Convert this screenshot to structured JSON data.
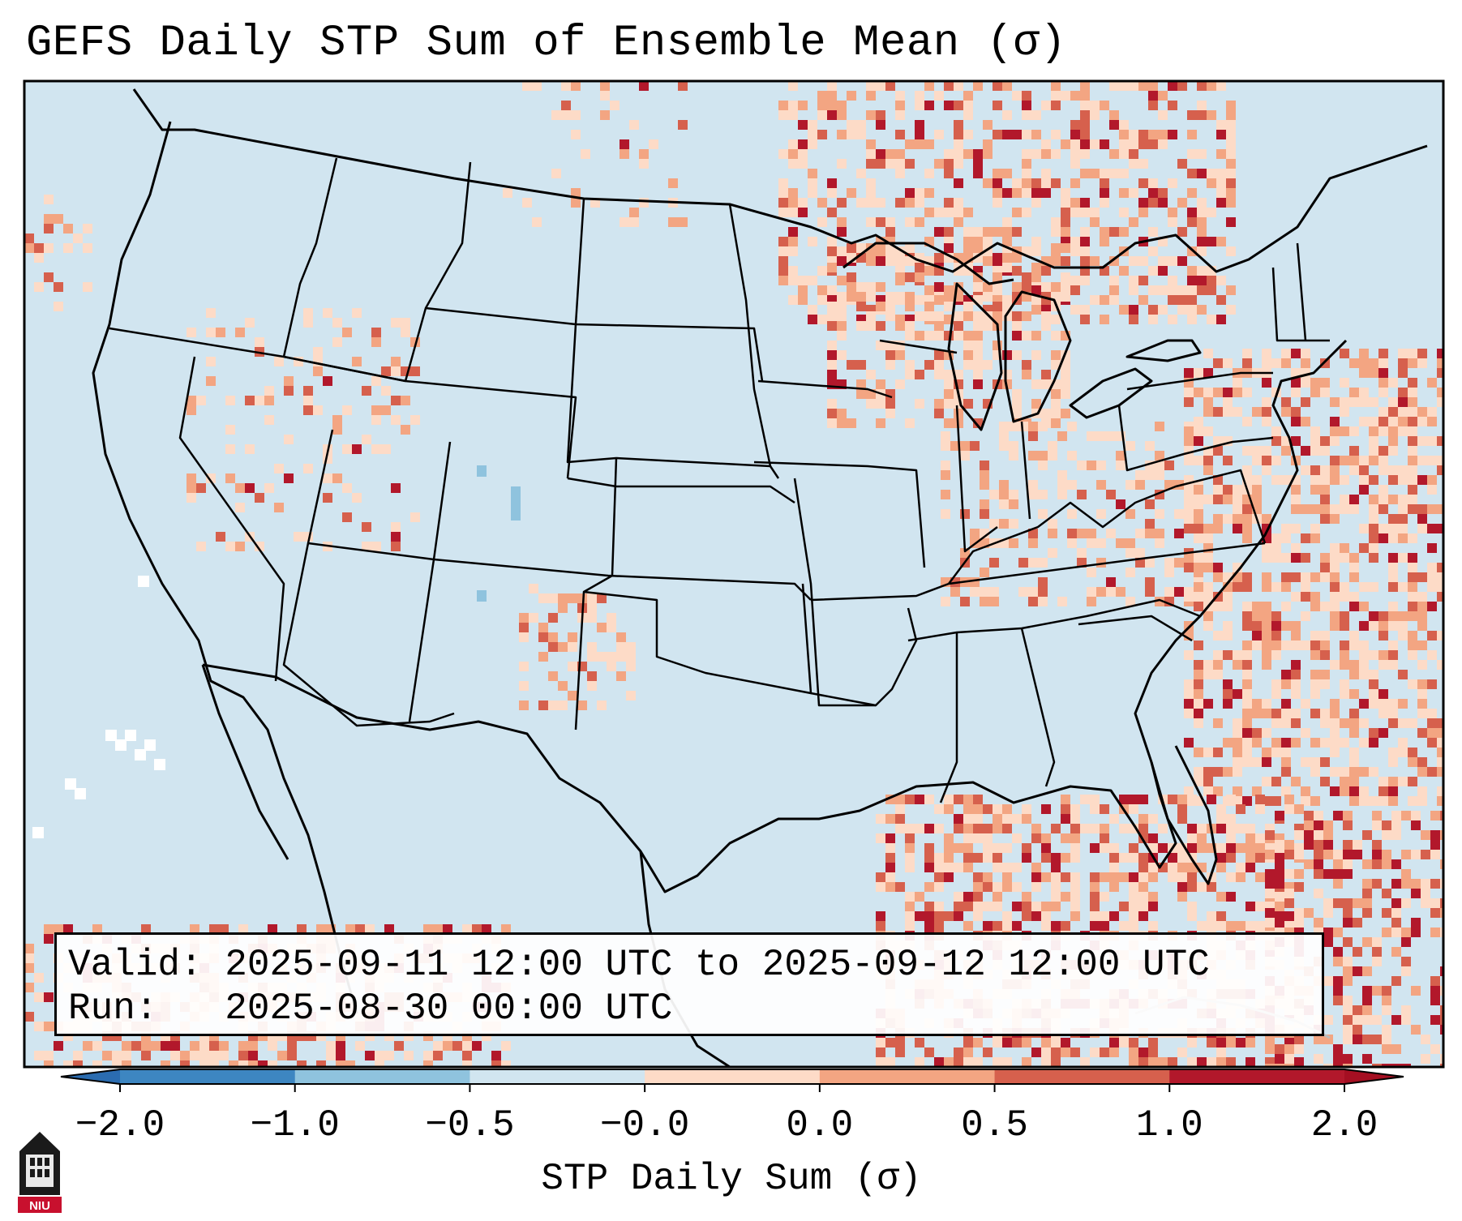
{
  "title": "GEFS Daily STP Sum of Ensemble Mean (σ)",
  "info": {
    "valid_label": "Valid:",
    "valid_value": "2025-09-11 12:00 UTC to 2025-09-12 12:00 UTC",
    "run_label": "Run:",
    "run_value": "2025-08-30 00:00 UTC"
  },
  "colorbar": {
    "label": "STP Daily Sum (σ)",
    "ticks": [
      "−2.0",
      "−1.0",
      "−0.5",
      "−0.0",
      "0.0",
      "0.5",
      "1.0",
      "2.0"
    ],
    "colors": [
      "#3d86c1",
      "#8fc3de",
      "#d1e5f0",
      "#f7f7f7",
      "#fddbc7",
      "#f3a582",
      "#d6604d",
      "#b2182b"
    ],
    "under_color": "#2b6cb0",
    "over_color": "#a50f22"
  },
  "logo": {
    "text": "NIU",
    "icon": "niu-building-icon"
  },
  "colors": {
    "background": "#d1e5f0",
    "border": "#000000"
  }
}
